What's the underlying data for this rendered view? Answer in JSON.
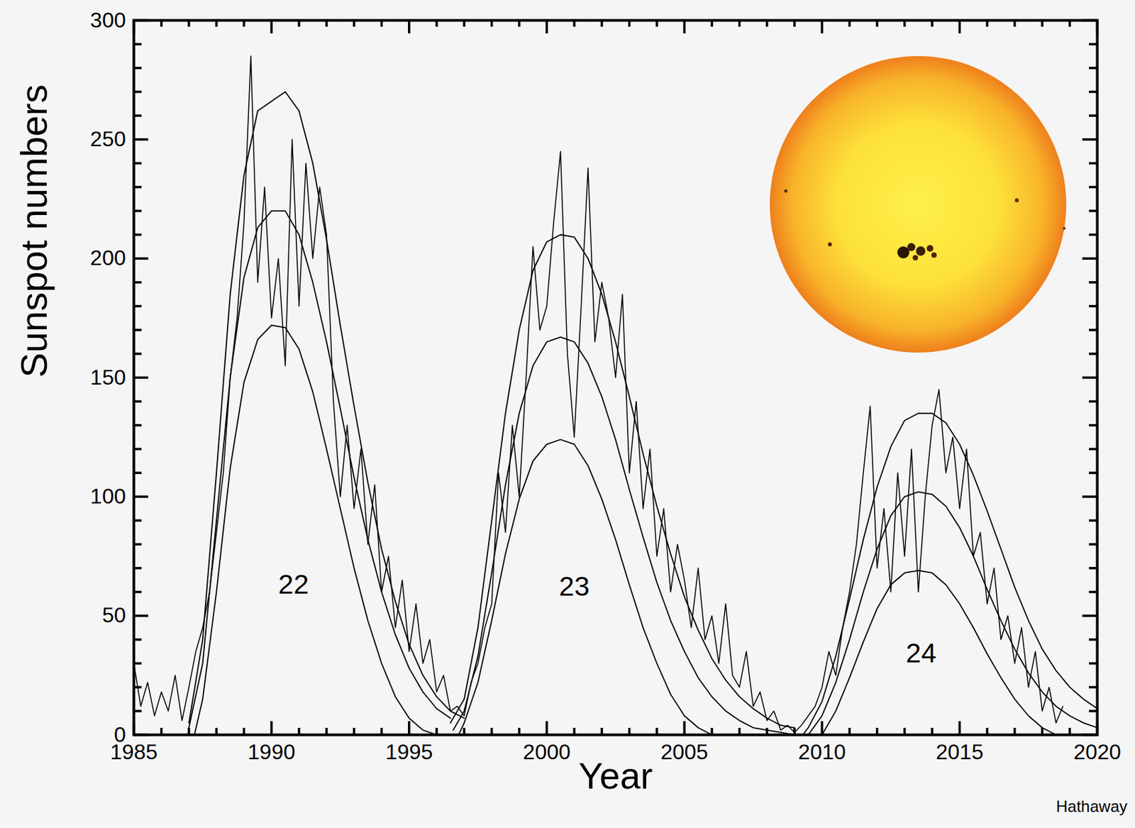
{
  "chart_data": {
    "type": "line",
    "xlabel": "Year",
    "ylabel": "Sunspot numbers",
    "source": "Hathaway",
    "xlim": [
      1985,
      2020
    ],
    "ylim": [
      0,
      300
    ],
    "xticks": [
      1985,
      1990,
      1995,
      2000,
      2005,
      2010,
      2015,
      2020
    ],
    "yticks": [
      0,
      50,
      100,
      150,
      200,
      250,
      300
    ],
    "grid": false,
    "annotations": [
      {
        "text": "22",
        "x": 1990.8,
        "y": 63
      },
      {
        "text": "23",
        "x": 2001.0,
        "y": 62
      },
      {
        "text": "24",
        "x": 2013.6,
        "y": 34
      }
    ],
    "series": [
      {
        "color": "#000000",
        "x": [
          1985,
          1985.25,
          1985.5,
          1985.75,
          1986,
          1986.25,
          1986.5,
          1986.75,
          1987,
          1987.25,
          1987.5,
          1987.75,
          1988,
          1988.25,
          1988.5,
          1988.75,
          1989,
          1989.25,
          1989.5,
          1989.75,
          1990,
          1990.25,
          1990.5,
          1990.75,
          1991,
          1991.25,
          1991.5,
          1991.75,
          1992,
          1992.25,
          1992.5,
          1992.75,
          1993,
          1993.25,
          1993.5,
          1993.75,
          1994,
          1994.25,
          1994.5,
          1994.75,
          1995,
          1995.25,
          1995.5,
          1995.75,
          1996,
          1996.25,
          1996.5,
          1996.75,
          1997,
          1997.25,
          1997.5,
          1997.75,
          1998,
          1998.25,
          1998.5,
          1998.75,
          1999,
          1999.25,
          1999.5,
          1999.75,
          2000,
          2000.25,
          2000.5,
          2000.75,
          2001,
          2001.25,
          2001.5,
          2001.75,
          2002,
          2002.25,
          2002.5,
          2002.75,
          2003,
          2003.25,
          2003.5,
          2003.75,
          2004,
          2004.25,
          2004.5,
          2004.75,
          2005,
          2005.25,
          2005.5,
          2005.75,
          2006,
          2006.25,
          2006.5,
          2006.75,
          2007,
          2007.25,
          2007.5,
          2007.75,
          2008,
          2008.25,
          2008.5,
          2008.75,
          2009,
          2009.25,
          2009.5,
          2009.75,
          2010,
          2010.25,
          2010.5,
          2010.75,
          2011,
          2011.25,
          2011.5,
          2011.75,
          2012,
          2012.25,
          2012.5,
          2012.75,
          2013,
          2013.25,
          2013.5,
          2013.75,
          2014,
          2014.25,
          2014.5,
          2014.75,
          2015,
          2015.25,
          2015.5,
          2015.75,
          2016,
          2016.25,
          2016.5,
          2016.75,
          2017,
          2017.25,
          2017.5,
          2017.75,
          2018,
          2018.25,
          2018.5,
          2018.75
        ],
        "values": [
          30,
          12,
          22,
          8,
          18,
          10,
          25,
          6,
          20,
          35,
          45,
          60,
          85,
          110,
          150,
          175,
          215,
          285,
          190,
          230,
          175,
          200,
          155,
          250,
          180,
          240,
          200,
          230,
          210,
          140,
          100,
          130,
          95,
          120,
          80,
          105,
          60,
          75,
          45,
          65,
          35,
          55,
          30,
          40,
          18,
          25,
          10,
          12,
          8,
          22,
          30,
          45,
          55,
          110,
          85,
          130,
          100,
          150,
          205,
          170,
          180,
          215,
          245,
          160,
          125,
          180,
          238,
          165,
          190,
          175,
          150,
          185,
          110,
          140,
          95,
          120,
          75,
          95,
          60,
          80,
          65,
          45,
          70,
          40,
          50,
          30,
          55,
          25,
          20,
          35,
          12,
          18,
          6,
          10,
          2,
          4,
          1,
          4,
          8,
          12,
          20,
          35,
          25,
          45,
          60,
          80,
          110,
          138,
          70,
          95,
          60,
          110,
          75,
          120,
          60,
          100,
          130,
          145,
          110,
          125,
          95,
          120,
          75,
          85,
          55,
          70,
          40,
          50,
          30,
          45,
          20,
          35,
          10,
          20,
          5,
          12
        ]
      },
      {
        "color": "#000000",
        "x": [
          1987,
          1987.5,
          1988,
          1988.5,
          1989,
          1989.5,
          1990,
          1990.5,
          1991,
          1991.5,
          1992,
          1992.5,
          1993,
          1993.5,
          1994,
          1994.5,
          1995,
          1995.5,
          1996,
          1996.5,
          1997
        ],
        "values": [
          5,
          40,
          110,
          185,
          235,
          262,
          266,
          270,
          262,
          240,
          208,
          172,
          138,
          106,
          78,
          56,
          38,
          25,
          16,
          10,
          7
        ]
      },
      {
        "color": "#000000",
        "x": [
          1987,
          1987.5,
          1988,
          1988.5,
          1989,
          1989.5,
          1990,
          1990.5,
          1991,
          1991.5,
          1992,
          1992.5,
          1993,
          1993.5,
          1994,
          1994.5,
          1995,
          1995.5,
          1996,
          1996.5
        ],
        "values": [
          3,
          30,
          90,
          150,
          192,
          213,
          220,
          220,
          210,
          190,
          165,
          137,
          108,
          82,
          60,
          42,
          28,
          18,
          11,
          7
        ]
      },
      {
        "color": "#000000",
        "x": [
          1987.2,
          1987.5,
          1988,
          1988.5,
          1989,
          1989.5,
          1990,
          1990.5,
          1991,
          1991.5,
          1992,
          1992.5,
          1993,
          1993.5,
          1994,
          1994.5,
          1995,
          1995.5,
          1996
        ],
        "values": [
          0,
          15,
          60,
          112,
          148,
          166,
          172,
          171,
          162,
          144,
          120,
          95,
          70,
          48,
          30,
          16,
          7,
          2,
          0
        ]
      },
      {
        "color": "#000000",
        "x": [
          1996.5,
          1997,
          1997.5,
          1998,
          1998.5,
          1999,
          1999.5,
          2000,
          2000.5,
          2001,
          2001.5,
          2002,
          2002.5,
          2003,
          2003.5,
          2004,
          2004.5,
          2005,
          2005.5,
          2006,
          2006.5,
          2007,
          2007.5,
          2008,
          2008.5,
          2009
        ],
        "values": [
          5,
          15,
          45,
          90,
          135,
          170,
          195,
          207,
          210,
          209,
          200,
          185,
          165,
          142,
          118,
          96,
          76,
          58,
          44,
          32,
          23,
          16,
          11,
          7,
          4,
          3
        ]
      },
      {
        "color": "#000000",
        "x": [
          1996.6,
          1997,
          1997.5,
          1998,
          1998.5,
          1999,
          1999.5,
          2000,
          2000.5,
          2001,
          2001.5,
          2002,
          2002.5,
          2003,
          2003.5,
          2004,
          2004.5,
          2005,
          2005.5,
          2006,
          2006.5,
          2007,
          2007.5,
          2008,
          2008.5,
          2009
        ],
        "values": [
          2,
          10,
          33,
          68,
          105,
          135,
          155,
          165,
          167,
          165,
          156,
          142,
          124,
          103,
          83,
          64,
          48,
          35,
          24,
          16,
          10,
          6,
          3,
          2,
          1,
          0
        ]
      },
      {
        "color": "#000000",
        "x": [
          1996.8,
          1997,
          1997.5,
          1998,
          1998.5,
          1999,
          1999.5,
          2000,
          2000.5,
          2001,
          2001.5,
          2002,
          2002.5,
          2003,
          2003.5,
          2004,
          2004.5,
          2005,
          2005.5,
          2006
        ],
        "values": [
          0,
          5,
          22,
          48,
          76,
          99,
          115,
          122,
          124,
          122,
          113,
          99,
          82,
          63,
          45,
          30,
          17,
          8,
          3,
          0
        ]
      },
      {
        "color": "#000000",
        "x": [
          2009.3,
          2009.5,
          2010,
          2010.5,
          2011,
          2011.5,
          2012,
          2012.5,
          2013,
          2013.5,
          2014,
          2014.5,
          2015,
          2015.5,
          2016,
          2016.5,
          2017,
          2017.5,
          2018,
          2018.5,
          2019,
          2019.5,
          2020
        ],
        "values": [
          0,
          3,
          14,
          33,
          57,
          82,
          104,
          121,
          132,
          135,
          135,
          131,
          122,
          109,
          94,
          78,
          62,
          48,
          36,
          27,
          20,
          15,
          11
        ]
      },
      {
        "color": "#000000",
        "x": [
          2009.5,
          2010,
          2010.5,
          2011,
          2011.5,
          2012,
          2012.5,
          2013,
          2013.5,
          2014,
          2014.5,
          2015,
          2015.5,
          2016,
          2016.5,
          2017,
          2017.5,
          2018,
          2018.5,
          2019,
          2019.5,
          2020
        ],
        "values": [
          0,
          8,
          22,
          40,
          60,
          78,
          92,
          100,
          102,
          101,
          96,
          87,
          75,
          61,
          48,
          36,
          26,
          18,
          12,
          8,
          5,
          3
        ]
      },
      {
        "color": "#000000",
        "x": [
          2010,
          2010.5,
          2011,
          2011.5,
          2012,
          2012.5,
          2013,
          2013.5,
          2014,
          2014.5,
          2015,
          2015.5,
          2016,
          2016.5,
          2017,
          2017.5,
          2018,
          2018.5
        ],
        "values": [
          0,
          10,
          24,
          39,
          53,
          63,
          68,
          69,
          68,
          63,
          55,
          45,
          34,
          24,
          15,
          8,
          3,
          0
        ]
      }
    ]
  }
}
